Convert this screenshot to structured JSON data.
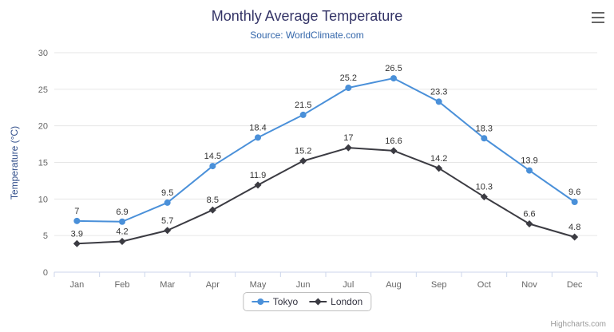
{
  "title": "Monthly Average Temperature",
  "subtitle": "Source: WorldClimate.com",
  "credits": "Highcharts.com",
  "menu_icon": "hamburger-export-menu",
  "colors": {
    "title": "#333366",
    "subtitle": "#3366aa",
    "grid": "#e6e6e6",
    "axis_line": "#ccd6eb",
    "tick_label": "#666666",
    "data_label": "#333333",
    "tokyo": "#4a90d9",
    "london": "#3b3b42"
  },
  "chart_data": {
    "type": "line",
    "title": "Monthly Average Temperature",
    "subtitle": "Source: WorldClimate.com",
    "categories": [
      "Jan",
      "Feb",
      "Mar",
      "Apr",
      "May",
      "Jun",
      "Jul",
      "Aug",
      "Sep",
      "Oct",
      "Nov",
      "Dec"
    ],
    "series": [
      {
        "name": "Tokyo",
        "color": "#4a90d9",
        "marker": "circle",
        "values": [
          7,
          6.9,
          9.5,
          14.5,
          18.4,
          21.5,
          25.2,
          26.5,
          23.3,
          18.3,
          13.9,
          9.6
        ]
      },
      {
        "name": "London",
        "color": "#3b3b42",
        "marker": "diamond",
        "values": [
          3.9,
          4.2,
          5.7,
          8.5,
          11.9,
          15.2,
          17,
          16.6,
          14.2,
          10.3,
          6.6,
          4.8
        ]
      }
    ],
    "xlabel": "",
    "ylabel": "Temperature (°C)",
    "ylim": [
      0,
      30
    ],
    "yticks": [
      0,
      5,
      10,
      15,
      20,
      25,
      30
    ],
    "grid": true,
    "legend_position": "bottom",
    "data_labels": true
  }
}
